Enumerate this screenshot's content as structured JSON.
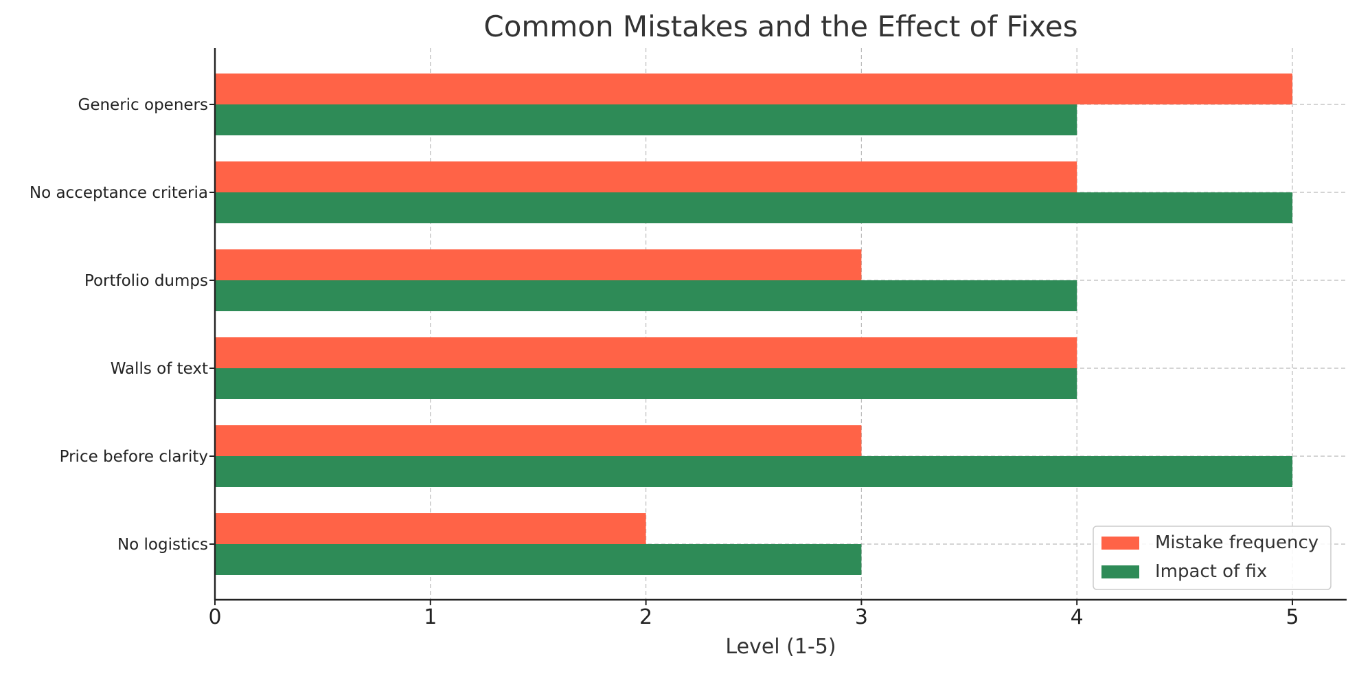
{
  "chart_data": {
    "type": "bar",
    "orientation": "horizontal",
    "title": "Common Mistakes and the Effect of Fixes",
    "xlabel": "Level (1-5)",
    "ylabel": "",
    "categories": [
      "Generic openers",
      "No acceptance criteria",
      "Portfolio dumps",
      "Walls of text",
      "Price before clarity",
      "No logistics"
    ],
    "series": [
      {
        "name": "Mistake frequency",
        "values": [
          5,
          4,
          3,
          4,
          3,
          2
        ],
        "color": "#ff6347"
      },
      {
        "name": "Impact of fix",
        "values": [
          4,
          5,
          4,
          4,
          5,
          3
        ],
        "color": "#2e8b57"
      }
    ],
    "xlim": [
      0,
      5.25
    ],
    "xticks": [
      "0",
      "1",
      "2",
      "3",
      "4",
      "5"
    ],
    "grid": true,
    "legend": "lower-right"
  }
}
